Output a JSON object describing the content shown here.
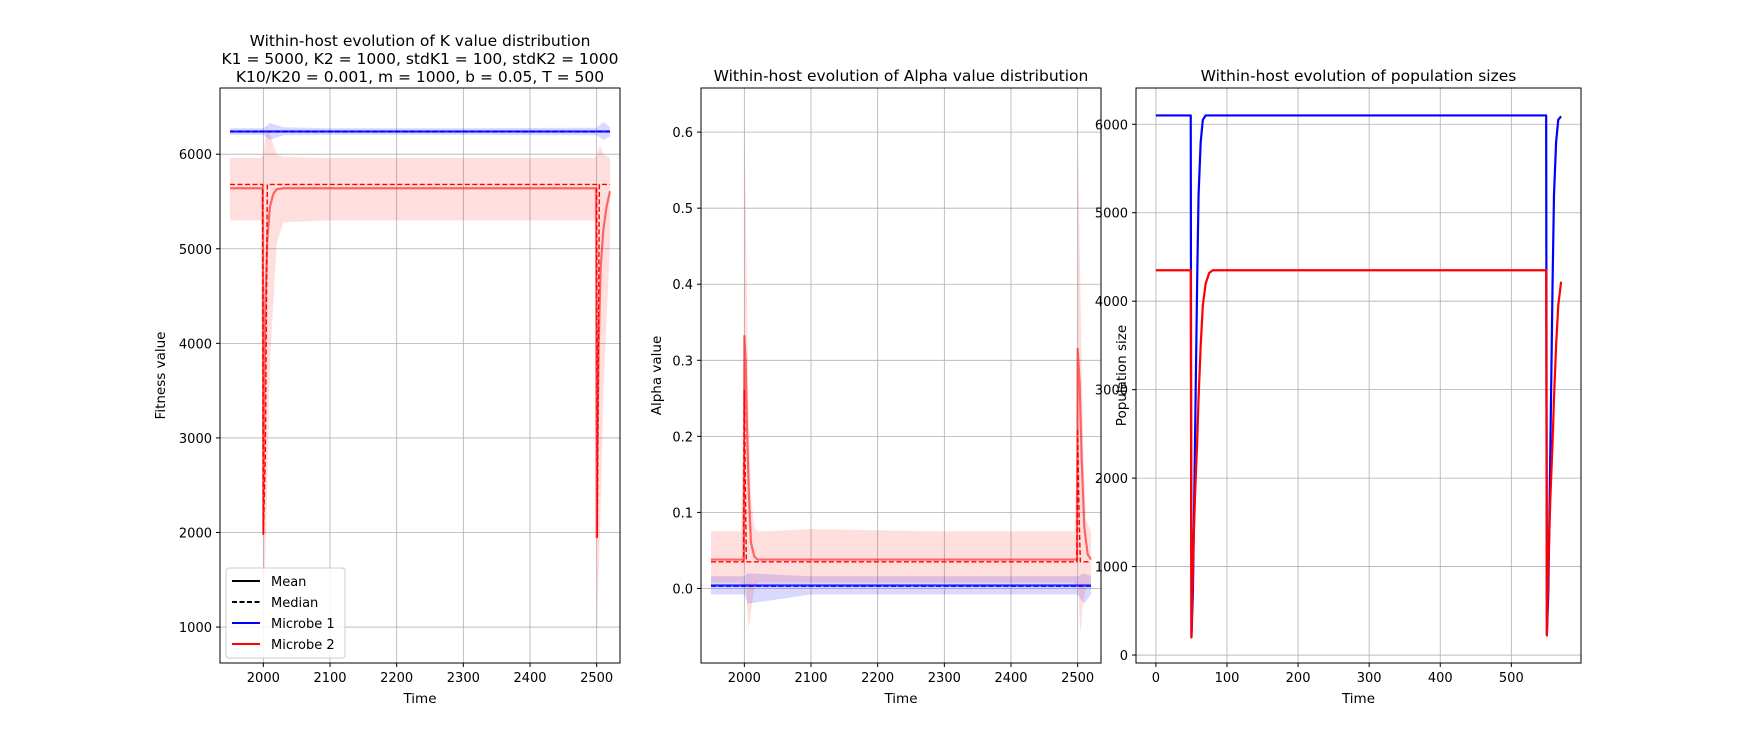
{
  "colors": {
    "microbe1": "#0000ff",
    "microbe2": "#ff0000",
    "grid": "#b0b0b0",
    "axis": "#000000"
  },
  "legend": {
    "placement": "lower-left",
    "entries": [
      {
        "label": "Mean",
        "color": "#000000",
        "style": "solid"
      },
      {
        "label": "Median",
        "color": "#000000",
        "style": "dashed"
      },
      {
        "label": "Microbe 1",
        "color": "#0000ff",
        "style": "solid"
      },
      {
        "label": "Microbe 2",
        "color": "#ff0000",
        "style": "solid"
      }
    ]
  },
  "chart_data": [
    {
      "type": "line",
      "title_lines": [
        "Within-host evolution of K value distribution",
        "K1 = 5000, K2 = 1000, stdK1 = 100, stdK2 = 1000",
        "K10/K20 = 0.001, m = 1000, b = 0.05, T = 500"
      ],
      "xlabel": "Time",
      "ylabel": "Fitness value",
      "xlim": [
        1935,
        2535
      ],
      "ylim": [
        620,
        6700
      ],
      "xticks": [
        2000,
        2100,
        2200,
        2300,
        2400,
        2500
      ],
      "yticks": [
        1000,
        2000,
        3000,
        4000,
        5000,
        6000
      ],
      "grid": true,
      "series": [
        {
          "name": "Microbe 1",
          "stat": "mean",
          "style": "solid",
          "color": "#0000ff",
          "x": [
            1950,
            2000,
            2010,
            2100,
            2300,
            2500,
            2520
          ],
          "y": [
            6240,
            6240,
            6240,
            6240,
            6240,
            6240,
            6240
          ],
          "band_x": [
            1950,
            2000,
            2010,
            2030,
            2100,
            2300,
            2500,
            2510,
            2520
          ],
          "band_low": [
            6205,
            6205,
            6150,
            6200,
            6205,
            6205,
            6200,
            6150,
            6190
          ],
          "band_high": [
            6275,
            6275,
            6330,
            6285,
            6275,
            6275,
            6280,
            6340,
            6285
          ]
        },
        {
          "name": "Microbe 1",
          "stat": "median",
          "style": "dashed",
          "color": "#0000ff",
          "x": [
            1950,
            2520
          ],
          "y": [
            6240,
            6240
          ]
        },
        {
          "name": "Microbe 2",
          "stat": "mean",
          "style": "solid",
          "color": "#ff0000",
          "x": [
            1950,
            1999,
            2000,
            2001,
            2003,
            2006,
            2010,
            2015,
            2020,
            2030,
            2100,
            2300,
            2499,
            2500,
            2501,
            2503,
            2506,
            2510,
            2515,
            2520
          ],
          "y": [
            5640,
            5640,
            1990,
            3000,
            4400,
            5100,
            5450,
            5580,
            5630,
            5640,
            5640,
            5640,
            5640,
            1950,
            2800,
            4000,
            4800,
            5200,
            5450,
            5610
          ],
          "band_x": [
            1950,
            1995,
            1999,
            2000,
            2005,
            2010,
            2020,
            2030,
            2100,
            2300,
            2495,
            2499,
            2500,
            2505,
            2510,
            2520
          ],
          "band_low": [
            5300,
            5300,
            5280,
            1000,
            2200,
            3800,
            5050,
            5280,
            5300,
            5300,
            5300,
            5280,
            880,
            2000,
            3500,
            5050
          ],
          "band_high": [
            5960,
            5960,
            5980,
            5980,
            6300,
            6200,
            6000,
            5970,
            5960,
            5960,
            5960,
            5980,
            5980,
            6100,
            6000,
            5960
          ]
        },
        {
          "name": "Microbe 2",
          "stat": "median",
          "style": "dashed",
          "color": "#ff0000",
          "x": [
            1950,
            1999,
            2000,
            2003,
            2006,
            2500,
            2501,
            2504,
            2520
          ],
          "y": [
            5680,
            5680,
            1980,
            2800,
            5680,
            5680,
            1950,
            5680,
            5680
          ]
        }
      ]
    },
    {
      "type": "line",
      "title": "Within-host evolution of Alpha value distribution",
      "xlabel": "Time",
      "ylabel": "Alpha value",
      "xlim": [
        1935,
        2535
      ],
      "ylim": [
        -0.098,
        0.658
      ],
      "xticks": [
        2000,
        2100,
        2200,
        2300,
        2400,
        2500
      ],
      "yticks": [
        0.0,
        0.1,
        0.2,
        0.3,
        0.4,
        0.5,
        0.6
      ],
      "grid": true,
      "series": [
        {
          "name": "Microbe 1",
          "stat": "mean",
          "style": "solid",
          "color": "#0000ff",
          "x": [
            1950,
            2520
          ],
          "y": [
            0.004,
            0.004
          ],
          "band_x": [
            1950,
            2000,
            2005,
            2100,
            2300,
            2500,
            2510,
            2520
          ],
          "band_low": [
            -0.008,
            -0.008,
            -0.02,
            -0.008,
            -0.008,
            -0.008,
            -0.02,
            -0.008
          ],
          "band_high": [
            0.016,
            0.016,
            0.02,
            0.016,
            0.016,
            0.016,
            0.02,
            0.016
          ]
        },
        {
          "name": "Microbe 1",
          "stat": "median",
          "style": "dashed",
          "color": "#0000ff",
          "x": [
            1950,
            2520
          ],
          "y": [
            0.003,
            0.003
          ]
        },
        {
          "name": "Microbe 2",
          "stat": "mean",
          "style": "solid",
          "color": "#ff0000",
          "x": [
            1950,
            1999,
            2000,
            2002,
            2004,
            2007,
            2010,
            2015,
            2020,
            2100,
            2300,
            2499,
            2500,
            2503,
            2506,
            2510,
            2515,
            2520
          ],
          "y": [
            0.038,
            0.038,
            0.332,
            0.3,
            0.21,
            0.12,
            0.06,
            0.042,
            0.038,
            0.038,
            0.038,
            0.038,
            0.315,
            0.27,
            0.17,
            0.08,
            0.045,
            0.038
          ],
          "band_x": [
            1950,
            1995,
            1999,
            2000,
            2003,
            2006,
            2010,
            2015,
            2020,
            2030,
            2100,
            2300,
            2495,
            2499,
            2500,
            2504,
            2508,
            2512,
            2520
          ],
          "band_low": [
            0.008,
            0.008,
            0.0,
            0.03,
            0.0,
            -0.055,
            -0.03,
            0.0,
            0.008,
            0.008,
            0.008,
            0.008,
            0.008,
            0.0,
            0.03,
            -0.06,
            -0.02,
            0.0,
            0.008
          ],
          "band_high": [
            0.075,
            0.075,
            0.2,
            0.62,
            0.45,
            0.25,
            0.12,
            0.08,
            0.075,
            0.075,
            0.078,
            0.075,
            0.075,
            0.2,
            0.61,
            0.4,
            0.2,
            0.09,
            0.075
          ]
        },
        {
          "name": "Microbe 2",
          "stat": "median",
          "style": "dashed",
          "color": "#ff0000",
          "x": [
            1950,
            1999,
            2000,
            2002,
            2003,
            2499,
            2500,
            2502,
            2504,
            2520
          ],
          "y": [
            0.035,
            0.035,
            0.26,
            0.1,
            0.035,
            0.035,
            0.21,
            0.1,
            0.035,
            0.035
          ]
        }
      ]
    },
    {
      "type": "line",
      "title": "Within-host evolution of population sizes",
      "xlabel": "Time",
      "ylabel": "Population size",
      "xlim": [
        -28,
        598
      ],
      "ylim": [
        -90,
        6410
      ],
      "xticks": [
        0,
        100,
        200,
        300,
        400,
        500
      ],
      "yticks": [
        0,
        1000,
        2000,
        3000,
        4000,
        5000,
        6000
      ],
      "grid": true,
      "series": [
        {
          "name": "Microbe 1",
          "style": "solid",
          "color": "#0000ff",
          "x": [
            0,
            49,
            50,
            52,
            54,
            56,
            58,
            60,
            63,
            66,
            70,
            100,
            300,
            549,
            550,
            552,
            554,
            556,
            558,
            560,
            563,
            566,
            570
          ],
          "y": [
            6100,
            6100,
            200,
            700,
            1800,
            3000,
            4200,
            5200,
            5800,
            6050,
            6100,
            6100,
            6100,
            6100,
            230,
            700,
            1800,
            3000,
            4200,
            5200,
            5800,
            6050,
            6090
          ]
        },
        {
          "name": "Microbe 2",
          "style": "solid",
          "color": "#ff0000",
          "x": [
            0,
            49,
            50,
            52,
            55,
            58,
            60,
            63,
            66,
            70,
            75,
            80,
            100,
            300,
            549,
            550,
            552,
            555,
            558,
            560,
            563,
            566,
            570
          ],
          "y": [
            4350,
            4350,
            200,
            1000,
            1800,
            2400,
            2900,
            3500,
            3950,
            4200,
            4320,
            4350,
            4350,
            4350,
            4350,
            220,
            1000,
            1800,
            2400,
            2900,
            3500,
            3950,
            4220
          ]
        }
      ]
    }
  ]
}
